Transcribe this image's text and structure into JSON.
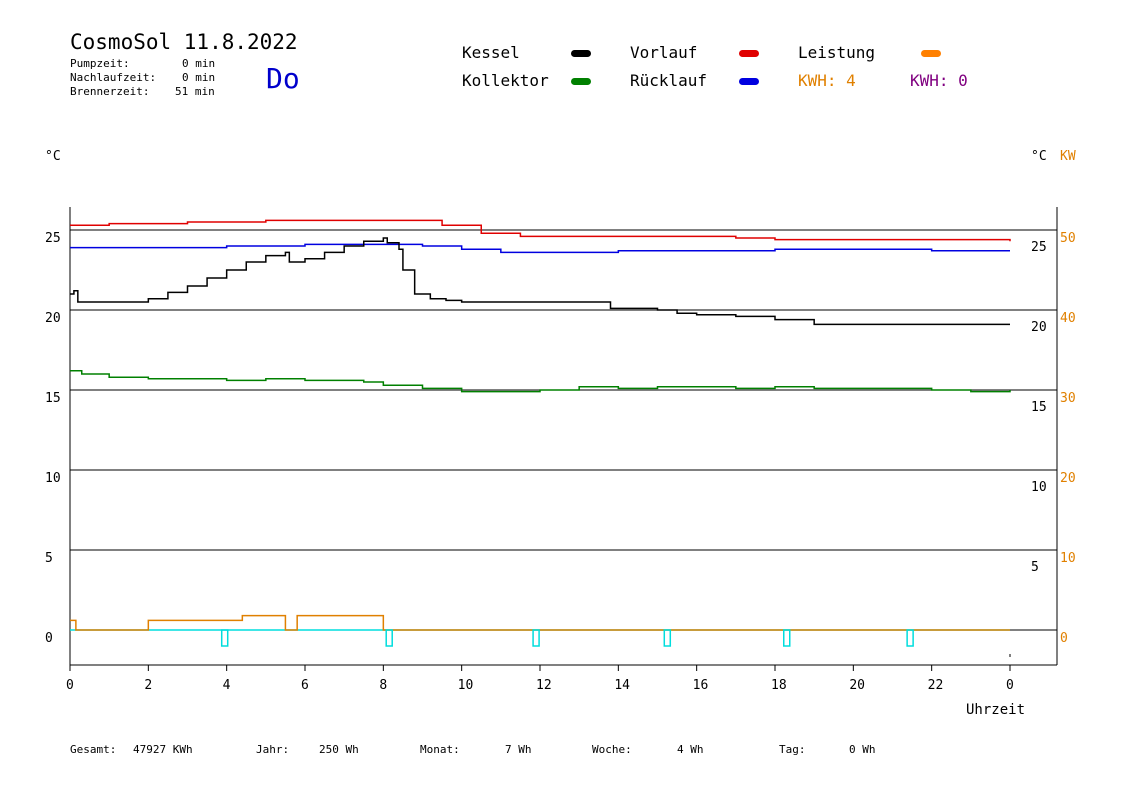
{
  "header": {
    "title": "CosmoSol 11.8.2022",
    "day": "Do",
    "info": [
      {
        "label": "Pumpzeit:",
        "value": "0 min"
      },
      {
        "label": "Nachlaufzeit:",
        "value": "0 min"
      },
      {
        "label": "Brennerzeit:",
        "value": "51 min"
      }
    ]
  },
  "legend": {
    "items": [
      {
        "label": "Kessel",
        "color": "#000000"
      },
      {
        "label": "Kollektor",
        "color": "#008000"
      },
      {
        "label": "Vorlauf",
        "color": "#e00000"
      },
      {
        "label": "Rücklauf",
        "color": "#0000e0"
      },
      {
        "label": "Leistung",
        "color": "#ff8000"
      }
    ],
    "kwh1": "KWH: 4",
    "kwh2": "KWH: 0",
    "kwh1_color": "#e08000",
    "kwh2_color": "#800080"
  },
  "axes": {
    "left_unit": "°C",
    "right_unit_c": "°C",
    "right_unit_kw": "KW",
    "xlabel": "Uhrzeit",
    "kw_color": "#e08000"
  },
  "footer": {
    "gesamt_label": "Gesamt:",
    "gesamt_value": "47927 KWh",
    "jahr_label": "Jahr:",
    "jahr_value": "250 Wh",
    "monat_label": "Monat:",
    "monat_value": "7 Wh",
    "woche_label": "Woche:",
    "woche_value": "4 Wh",
    "tag_label": "Tag:",
    "tag_value": "0 Wh"
  },
  "chart_data": {
    "type": "line",
    "xlim": [
      0,
      24
    ],
    "ylim": [
      -3,
      27
    ],
    "y2lim": [
      -6,
      54
    ],
    "x_tick_labels": [
      "0",
      "2",
      "4",
      "6",
      "8",
      "10",
      "12",
      "14",
      "16",
      "18",
      "20",
      "22",
      "0"
    ],
    "y_ticks": [
      0,
      5,
      10,
      15,
      20,
      25
    ],
    "y_tick_labels_left": [
      "0",
      "5",
      "10",
      "15",
      "20",
      "25"
    ],
    "y_tick_labels_right_c": [
      "5",
      "10",
      "15",
      "20",
      "25"
    ],
    "y_tick_labels_right_kw": [
      "0",
      "10",
      "20",
      "30",
      "40",
      "50"
    ],
    "grid": "horizontal",
    "series": [
      {
        "name": "Vorlauf",
        "color": "#e00000",
        "x": [
          0,
          1,
          2,
          3,
          4,
          5,
          6,
          7,
          8,
          8.8,
          9.5,
          10.5,
          11.5,
          13,
          15,
          17,
          18,
          19,
          20,
          22,
          24
        ],
        "y": [
          25.3,
          25.4,
          25.4,
          25.5,
          25.5,
          25.6,
          25.6,
          25.6,
          25.6,
          25.6,
          25.3,
          24.8,
          24.6,
          24.6,
          24.6,
          24.5,
          24.4,
          24.4,
          24.4,
          24.4,
          24.3
        ]
      },
      {
        "name": "Rücklauf",
        "color": "#0000e0",
        "x": [
          0,
          2,
          4,
          6,
          8,
          9,
          10,
          11,
          12,
          14,
          16,
          18,
          20,
          22,
          24
        ],
        "y": [
          23.9,
          23.9,
          24.0,
          24.1,
          24.1,
          24.0,
          23.8,
          23.6,
          23.6,
          23.7,
          23.7,
          23.8,
          23.8,
          23.7,
          23.7
        ]
      },
      {
        "name": "Kessel",
        "color": "#000000",
        "x": [
          0,
          0.1,
          0.2,
          0.4,
          1.0,
          1.8,
          2.0,
          2.5,
          3.0,
          3.5,
          4.0,
          4.5,
          5.0,
          5.5,
          5.6,
          6.0,
          6.5,
          7.0,
          7.5,
          8.0,
          8.1,
          8.4,
          8.5,
          8.8,
          9.2,
          9.6,
          10,
          11,
          12,
          13.4,
          13.8,
          15,
          15.5,
          16,
          17,
          18,
          19,
          20,
          22,
          24
        ],
        "y": [
          21.0,
          21.2,
          20.5,
          20.5,
          20.5,
          20.5,
          20.7,
          21.1,
          21.5,
          22.0,
          22.5,
          23.0,
          23.4,
          23.6,
          23.0,
          23.2,
          23.6,
          24.0,
          24.3,
          24.5,
          24.2,
          23.8,
          22.5,
          21.0,
          20.7,
          20.6,
          20.5,
          20.5,
          20.5,
          20.5,
          20.1,
          20.0,
          19.8,
          19.7,
          19.6,
          19.4,
          19.1,
          19.1,
          19.1,
          19.1
        ]
      },
      {
        "name": "Kollektor",
        "color": "#008000",
        "x": [
          0,
          0.3,
          1,
          2,
          3,
          4,
          5,
          5.5,
          6,
          7,
          7.5,
          8,
          9,
          10,
          11,
          12,
          13,
          14,
          15,
          16,
          17,
          18,
          19,
          20,
          21,
          22,
          23,
          24
        ],
        "y": [
          16.2,
          16.0,
          15.8,
          15.7,
          15.7,
          15.6,
          15.7,
          15.7,
          15.6,
          15.6,
          15.5,
          15.3,
          15.1,
          14.9,
          14.9,
          15.0,
          15.2,
          15.1,
          15.2,
          15.2,
          15.1,
          15.2,
          15.1,
          15.1,
          15.1,
          15.0,
          14.9,
          15.0
        ]
      },
      {
        "name": "Leistung",
        "color": "#e08000",
        "x": [
          0,
          0.15,
          0.15,
          2.0,
          2.0,
          4.4,
          4.4,
          5.5,
          5.5,
          5.8,
          5.8,
          8.0,
          8.0,
          24
        ],
        "y": [
          0.6,
          0.6,
          0,
          0,
          0.6,
          0.6,
          0.9,
          0.9,
          0,
          0,
          0.9,
          0.9,
          0,
          0
        ]
      }
    ],
    "pump_markers_x": [
      3.95,
      8.15,
      11.9,
      15.25,
      18.3,
      21.45
    ]
  }
}
